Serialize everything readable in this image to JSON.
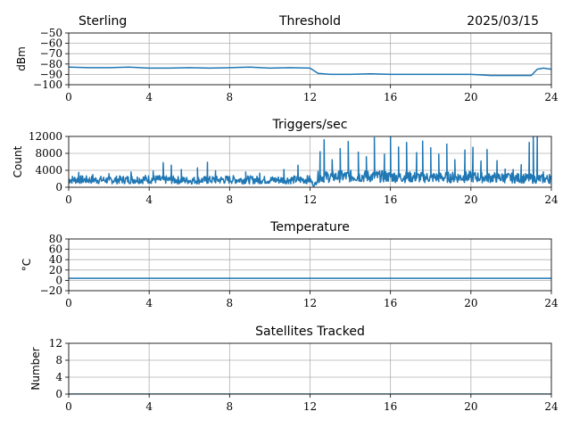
{
  "header": {
    "station": "Sterling",
    "date": "2025/03/15"
  },
  "colors": {
    "series": "#1f77b4"
  },
  "chart_data": [
    {
      "type": "line",
      "title": "Threshold",
      "ylabel": "dBm",
      "xlim": [
        0,
        24
      ],
      "ylim": [
        -100,
        -50
      ],
      "xticks": [
        0,
        4,
        8,
        12,
        16,
        20,
        24
      ],
      "yticks": [
        -50,
        -60,
        -70,
        -80,
        -90,
        -100
      ],
      "ytick_labels": [
        "−50",
        "−60",
        "−70",
        "−80",
        "−90",
        "−100"
      ],
      "grid": true,
      "x": [
        0,
        1,
        2,
        3,
        4,
        5,
        6,
        7,
        8,
        9,
        10,
        11,
        12,
        12.4,
        13,
        14,
        15,
        16,
        17,
        18,
        19,
        20,
        21,
        22,
        23,
        23.3,
        23.6,
        24
      ],
      "y": [
        -83,
        -83.5,
        -83.5,
        -83,
        -84,
        -84,
        -83.5,
        -84,
        -83.5,
        -83,
        -84,
        -83.5,
        -84,
        -89,
        -90,
        -90,
        -89.5,
        -90,
        -90,
        -90,
        -90,
        -90,
        -91,
        -91,
        -91,
        -85,
        -84,
        -85
      ]
    },
    {
      "type": "line",
      "title": "Triggers/sec",
      "ylabel": "Count",
      "xlim": [
        0,
        24
      ],
      "ylim": [
        0,
        12000
      ],
      "xticks": [
        0,
        4,
        8,
        12,
        16,
        20,
        24
      ],
      "yticks": [
        0,
        4000,
        8000,
        12000
      ],
      "grid": true,
      "baseline": [
        [
          0,
          1800
        ],
        [
          2,
          1700
        ],
        [
          4,
          1900
        ],
        [
          6,
          1600
        ],
        [
          8,
          1800
        ],
        [
          10,
          1700
        ],
        [
          12,
          1800
        ],
        [
          12.2,
          300
        ],
        [
          12.4,
          2400
        ],
        [
          14,
          2600
        ],
        [
          16,
          2500
        ],
        [
          18,
          2300
        ],
        [
          20,
          2400
        ],
        [
          22,
          2200
        ],
        [
          24,
          1900
        ]
      ],
      "spikes": [
        [
          0.5,
          3500
        ],
        [
          1.2,
          3000
        ],
        [
          2.0,
          3200
        ],
        [
          3.1,
          3600
        ],
        [
          4.2,
          3800
        ],
        [
          4.7,
          5800
        ],
        [
          5.1,
          5200
        ],
        [
          5.6,
          4200
        ],
        [
          6.4,
          4600
        ],
        [
          6.9,
          5900
        ],
        [
          7.3,
          3900
        ],
        [
          8.8,
          3600
        ],
        [
          9.5,
          3300
        ],
        [
          10.7,
          4200
        ],
        [
          11.4,
          5200
        ],
        [
          12.5,
          8400
        ],
        [
          12.7,
          11200
        ],
        [
          13.1,
          6500
        ],
        [
          13.5,
          9100
        ],
        [
          13.9,
          10800
        ],
        [
          14.4,
          8300
        ],
        [
          14.8,
          7200
        ],
        [
          15.2,
          11700
        ],
        [
          15.7,
          7800
        ],
        [
          16.0,
          12000
        ],
        [
          16.4,
          9500
        ],
        [
          16.8,
          10600
        ],
        [
          17.3,
          8200
        ],
        [
          17.6,
          10900
        ],
        [
          18.0,
          9300
        ],
        [
          18.4,
          7800
        ],
        [
          18.8,
          10200
        ],
        [
          19.2,
          6500
        ],
        [
          19.7,
          8800
        ],
        [
          20.1,
          9400
        ],
        [
          20.5,
          6200
        ],
        [
          20.8,
          8900
        ],
        [
          21.3,
          6300
        ],
        [
          21.7,
          4300
        ],
        [
          22.1,
          4200
        ],
        [
          22.5,
          5300
        ],
        [
          22.9,
          10600
        ],
        [
          23.1,
          12000
        ],
        [
          23.3,
          12000
        ],
        [
          23.6,
          3600
        ],
        [
          23.9,
          3000
        ]
      ]
    },
    {
      "type": "line",
      "title": "Temperature",
      "ylabel": "°C",
      "xlim": [
        0,
        24
      ],
      "ylim": [
        -20,
        80
      ],
      "xticks": [
        0,
        4,
        8,
        12,
        16,
        20,
        24
      ],
      "yticks": [
        -20,
        0,
        20,
        40,
        60,
        80
      ],
      "ytick_labels": [
        "−20",
        "0",
        "20",
        "40",
        "60",
        "80"
      ],
      "grid": true,
      "x": [
        0,
        24
      ],
      "y": [
        4,
        4
      ]
    },
    {
      "type": "line",
      "title": "Satellites Tracked",
      "ylabel": "Number",
      "xlim": [
        0,
        24
      ],
      "ylim": [
        0,
        12
      ],
      "xticks": [
        0,
        4,
        8,
        12,
        16,
        20,
        24
      ],
      "yticks": [
        0,
        4,
        8,
        12
      ],
      "grid": true,
      "x": [
        0,
        24
      ],
      "y": [
        0,
        0
      ]
    }
  ]
}
